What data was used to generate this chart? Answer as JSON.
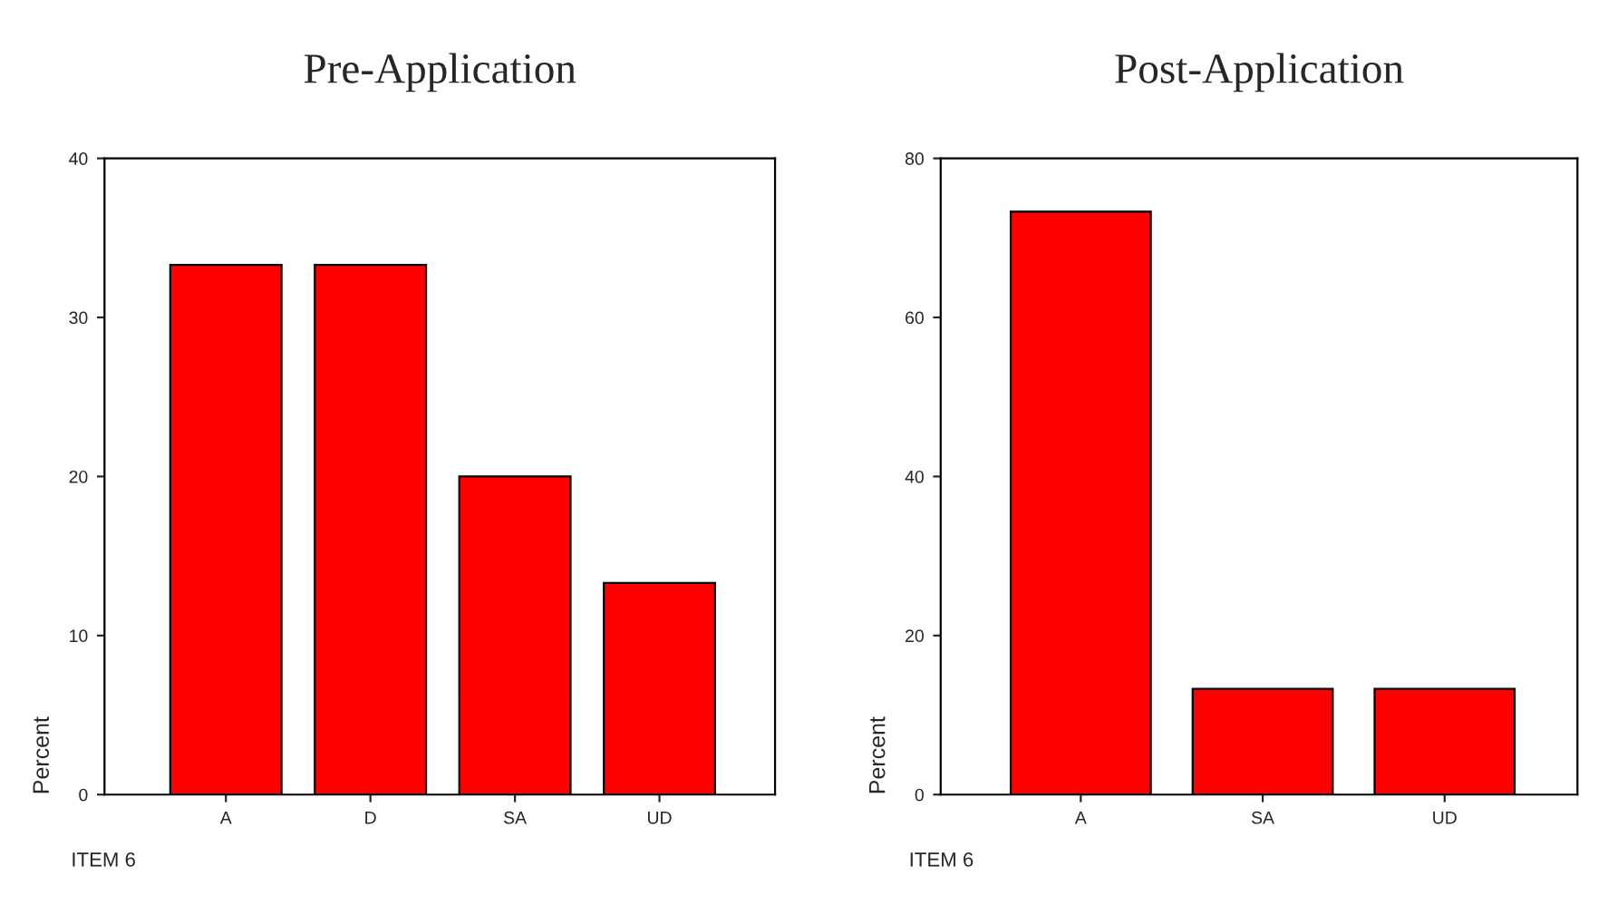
{
  "chart_data": [
    {
      "type": "bar",
      "title": "Pre-Application",
      "xlabel": "ITEM 6",
      "ylabel": "Percent",
      "categories": [
        "A",
        "D",
        "SA",
        "UD"
      ],
      "values": [
        33.3,
        33.3,
        20,
        13.3
      ],
      "color": "#ff0000",
      "ylim": [
        0,
        40
      ],
      "yticks": [
        0,
        10,
        20,
        30,
        40
      ],
      "grid": false
    },
    {
      "type": "bar",
      "title": "Post-Application",
      "xlabel": "ITEM 6",
      "ylabel": "Percent",
      "categories": [
        "A",
        "SA",
        "UD"
      ],
      "values": [
        73.3,
        13.3,
        13.3
      ],
      "color": "#ff0000",
      "ylim": [
        0,
        80
      ],
      "yticks": [
        0,
        20,
        40,
        60,
        80
      ],
      "grid": false
    }
  ]
}
